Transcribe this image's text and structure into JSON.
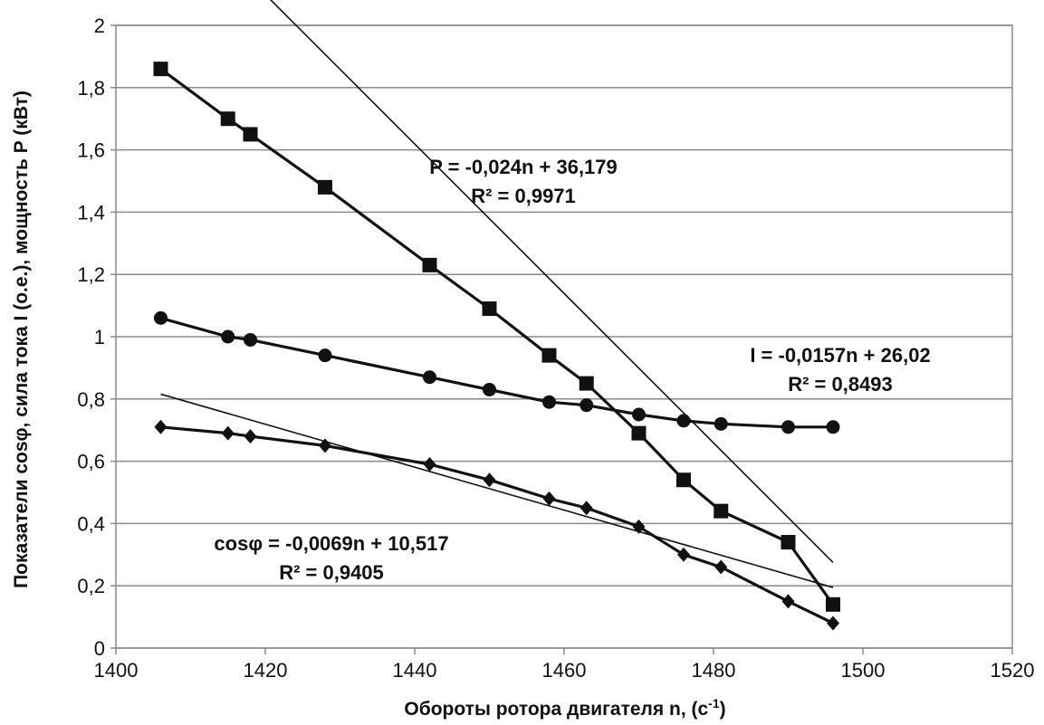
{
  "chart_data": {
    "type": "line",
    "title": "",
    "xlabel": "Обороты ротора двигателя n, (с",
    "xlabel_sup": "-1",
    "xlabel_tail": ")",
    "ylabel": "Показатели cosφ, сила тока I (о.е.),  мощность P (кВт)",
    "xlim": [
      1400,
      1520
    ],
    "ylim": [
      0,
      2
    ],
    "xticks": [
      1400,
      1420,
      1440,
      1460,
      1480,
      1500,
      1520
    ],
    "yticks": [
      0,
      0.2,
      0.4,
      0.6,
      0.8,
      1,
      1.2,
      1.4,
      1.6,
      1.8,
      2
    ],
    "xtick_labels": [
      "1400",
      "1420",
      "1440",
      "1460",
      "1480",
      "1500",
      "1520"
    ],
    "ytick_labels": [
      "0",
      "0,2",
      "0,4",
      "0,6",
      "0,8",
      "1",
      "1,2",
      "1,4",
      "1,6",
      "1,8",
      "2"
    ],
    "grid": "horizontal",
    "series": [
      {
        "marker": "square",
        "x": [
          1406,
          1415,
          1418,
          1428,
          1442,
          1450,
          1458,
          1463,
          1470,
          1476,
          1481,
          1490,
          1496
        ],
        "y": [
          1.86,
          1.7,
          1.65,
          1.48,
          1.23,
          1.09,
          0.94,
          0.85,
          0.69,
          0.54,
          0.44,
          0.34,
          0.14
        ],
        "trend": {
          "slope": -0.024,
          "intercept": 36.179
        }
      },
      {
        "marker": "circle",
        "x": [
          1406,
          1415,
          1418,
          1428,
          1442,
          1450,
          1458,
          1463,
          1470,
          1476,
          1481,
          1490,
          1496
        ],
        "y": [
          1.06,
          1.0,
          0.99,
          0.94,
          0.87,
          0.83,
          0.79,
          0.78,
          0.75,
          0.73,
          0.72,
          0.71,
          0.71
        ],
        "trend": {
          "slope": -0.0157,
          "intercept": 26.02
        }
      },
      {
        "marker": "diamond",
        "x": [
          1406,
          1415,
          1418,
          1428,
          1442,
          1450,
          1458,
          1463,
          1470,
          1476,
          1481,
          1490,
          1496
        ],
        "y": [
          0.71,
          0.69,
          0.68,
          0.65,
          0.59,
          0.54,
          0.48,
          0.45,
          0.39,
          0.3,
          0.26,
          0.15,
          0.08
        ],
        "trend": {
          "slope": -0.0069,
          "intercept": 10.517
        }
      }
    ],
    "annotations": [
      {
        "line1": "P = -0,024n + 36,179",
        "line2": "R² = 0,9971"
      },
      {
        "line1": "I = -0,0157n + 26,02",
        "line2": "R² = 0,8493"
      },
      {
        "line1": "cosφ = -0,0069n + 10,517",
        "line2": "R² = 0,9405"
      }
    ]
  }
}
